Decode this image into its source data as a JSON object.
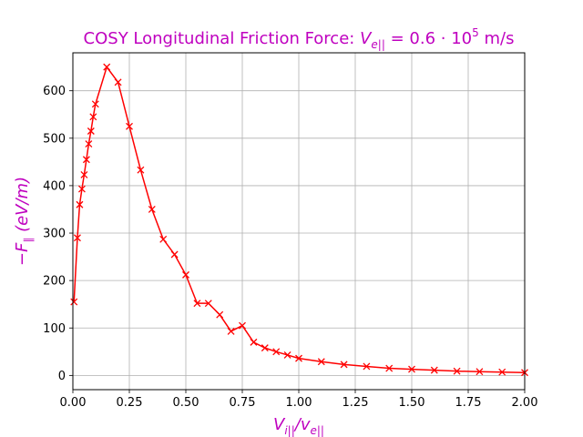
{
  "chart_data": {
    "type": "line",
    "title": {
      "prefix": "COSY Longitudinal Friction Force: ",
      "var": "V",
      "var_sub": "e||",
      "eq": " = 0.6 · 10",
      "exp": "5",
      "unit": " m/s"
    },
    "xlabel": {
      "main": "V",
      "sub1": "i||",
      "slash": "/",
      "main2": "v",
      "sub2": "e||"
    },
    "ylabel": {
      "minus": "−",
      "main": "F",
      "sub": "∥",
      "unit": " (eV/m)"
    },
    "xlim": [
      0,
      2
    ],
    "ylim": [
      -30,
      680
    ],
    "xticks": [
      0,
      0.25,
      0.5,
      0.75,
      1.0,
      1.25,
      1.5,
      1.75,
      2.0
    ],
    "xtick_labels": [
      "0.00",
      "0.25",
      "0.50",
      "0.75",
      "1.00",
      "1.25",
      "1.50",
      "1.75",
      "2.00"
    ],
    "yticks": [
      0,
      100,
      200,
      300,
      400,
      500,
      600
    ],
    "ytick_labels": [
      "0",
      "100",
      "200",
      "300",
      "400",
      "500",
      "600"
    ],
    "grid": true,
    "line_color": "#ff0000",
    "text_color": "#bf00bf",
    "marker": "x",
    "series": [
      {
        "x": [
          0.005,
          0.02,
          0.03,
          0.04,
          0.05,
          0.06,
          0.07,
          0.08,
          0.09,
          0.1,
          0.15,
          0.2,
          0.25,
          0.3,
          0.35,
          0.4,
          0.45,
          0.5,
          0.55,
          0.6,
          0.65,
          0.7,
          0.75,
          0.8,
          0.85,
          0.9,
          0.95,
          1.0,
          1.1,
          1.2,
          1.3,
          1.4,
          1.5,
          1.6,
          1.7,
          1.8,
          1.9,
          2.0
        ],
        "y": [
          155,
          290,
          360,
          393,
          423,
          455,
          488,
          515,
          545,
          572,
          650,
          618,
          525,
          433,
          350,
          287,
          255,
          212,
          152,
          152,
          128,
          93,
          105,
          70,
          58,
          50,
          43,
          36,
          29,
          23,
          19,
          15,
          13,
          11,
          9,
          8,
          7,
          6
        ]
      }
    ]
  }
}
